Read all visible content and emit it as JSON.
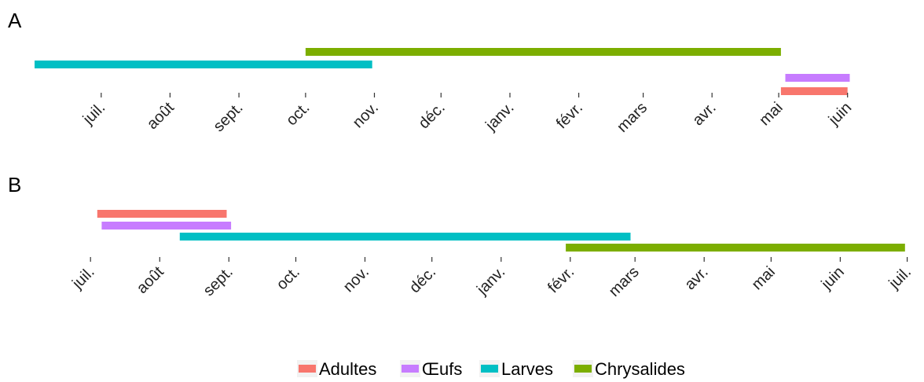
{
  "chart_data": [
    {
      "type": "bar",
      "orientation": "horizontal-timeline",
      "panel_label": "A",
      "xlim": [
        "2023-06-01",
        "2024-06-05"
      ],
      "tick_labels": [
        "juil.",
        "août",
        "sept.",
        "oct.",
        "nov.",
        "déc.",
        "janv.",
        "févr.",
        "mars",
        "avr.",
        "mai",
        "juin"
      ],
      "tick_dates": [
        "2023-07-01",
        "2023-08-01",
        "2023-09-01",
        "2023-10-01",
        "2023-11-01",
        "2023-12-01",
        "2024-01-01",
        "2024-02-01",
        "2024-03-01",
        "2024-04-01",
        "2024-05-01",
        "2024-06-01"
      ],
      "series": [
        {
          "name": "Chrysalides",
          "start": "2023-10-01",
          "end": "2024-05-02"
        },
        {
          "name": "Larves",
          "start": "2023-06-01",
          "end": "2023-10-31"
        },
        {
          "name": "Œufs",
          "start": "2024-05-04",
          "end": "2024-06-02"
        },
        {
          "name": "Adultes",
          "start": "2024-05-02",
          "end": "2024-06-01"
        }
      ],
      "grid": false
    },
    {
      "type": "bar",
      "orientation": "horizontal-timeline",
      "panel_label": "B",
      "xlim": [
        "2023-06-20",
        "2024-07-05"
      ],
      "tick_labels": [
        "juil.",
        "août",
        "sept.",
        "oct.",
        "nov.",
        "déc.",
        "janv.",
        "févr.",
        "mars",
        "avr.",
        "mai",
        "juin",
        "juil."
      ],
      "tick_dates": [
        "2023-07-01",
        "2023-08-01",
        "2023-09-01",
        "2023-10-01",
        "2023-11-01",
        "2023-12-01",
        "2024-01-01",
        "2024-02-01",
        "2024-03-01",
        "2024-04-01",
        "2024-05-01",
        "2024-06-01",
        "2024-07-01"
      ],
      "series": [
        {
          "name": "Adultes",
          "start": "2023-07-04",
          "end": "2023-08-31"
        },
        {
          "name": "Œufs",
          "start": "2023-07-06",
          "end": "2023-09-02"
        },
        {
          "name": "Larves",
          "start": "2023-08-10",
          "end": "2024-02-28"
        },
        {
          "name": "Chrysalides",
          "start": "2024-01-30",
          "end": "2024-06-30"
        }
      ],
      "grid": false
    }
  ],
  "legend": {
    "placement": "bottom",
    "items": [
      {
        "label": "Adultes",
        "color": "#F8766D"
      },
      {
        "label": "Œufs",
        "color": "#C77CFF"
      },
      {
        "label": "Larves",
        "color": "#00BFC4"
      },
      {
        "label": "Chrysalides",
        "color": "#7CAE00"
      }
    ]
  }
}
